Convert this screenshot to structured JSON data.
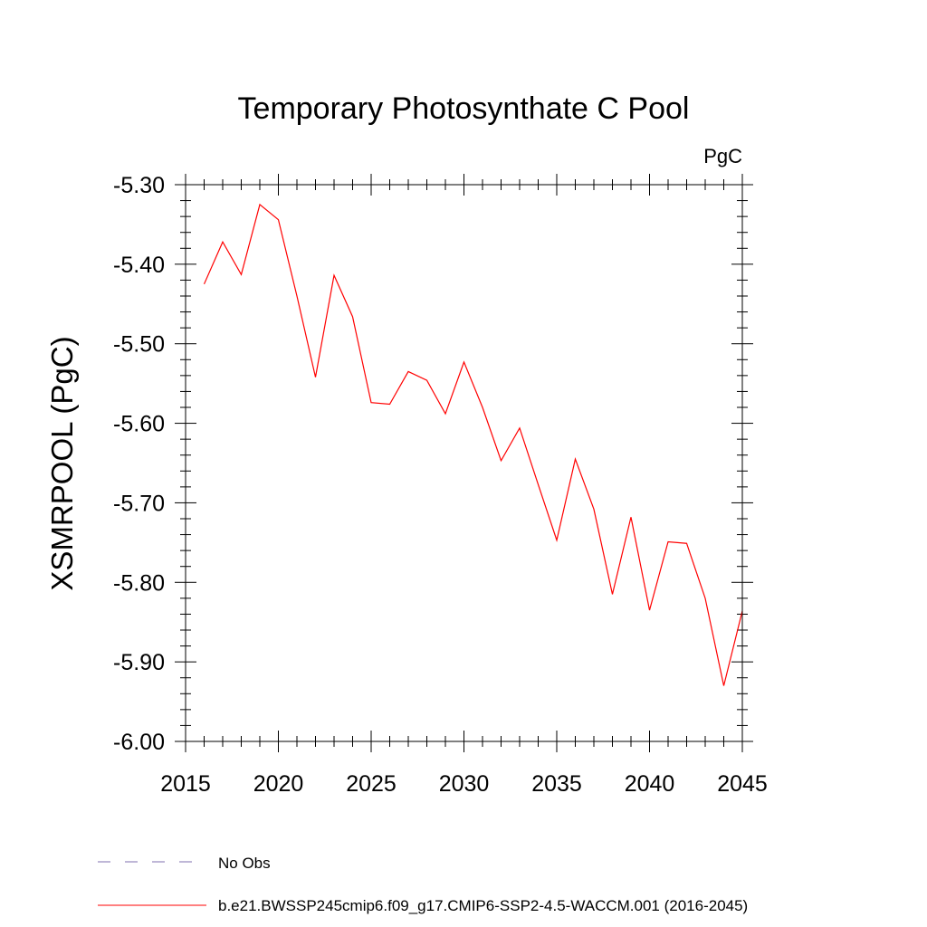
{
  "chart_data": {
    "type": "line",
    "title": "Temporary Photosynthate C Pool",
    "units_label": "PgC",
    "xlabel": "",
    "ylabel": "XSMRPOOL  (PgC)",
    "xlim": [
      2015,
      2045
    ],
    "ylim": [
      -6.0,
      -5.3
    ],
    "x_ticks": [
      2015,
      2020,
      2025,
      2030,
      2035,
      2040,
      2045
    ],
    "x_tick_labels": [
      "2015",
      "2020",
      "2025",
      "2030",
      "2035",
      "2040",
      "2045"
    ],
    "y_ticks": [
      -6.0,
      -5.9,
      -5.8,
      -5.7,
      -5.6,
      -5.5,
      -5.4,
      -5.3
    ],
    "y_tick_labels": [
      "-6.00",
      "-5.90",
      "-5.80",
      "-5.70",
      "-5.60",
      "-5.50",
      "-5.40",
      "-5.30"
    ],
    "grid": false,
    "legend_position": "bottom-left",
    "series": [
      {
        "name": "b.e21.BWSSP245cmip6.f09_g17.CMIP6-SSP2-4.5-WACCM.001 (2016-2045)",
        "color": "#ff0000",
        "style": "solid",
        "x": [
          2016,
          2017,
          2018,
          2019,
          2020,
          2021,
          2022,
          2023,
          2024,
          2025,
          2026,
          2027,
          2028,
          2029,
          2030,
          2031,
          2032,
          2033,
          2034,
          2035,
          2036,
          2037,
          2038,
          2039,
          2040,
          2041,
          2042,
          2043,
          2044,
          2045
        ],
        "values": [
          -5.425,
          -5.372,
          -5.413,
          -5.325,
          -5.344,
          -5.44,
          -5.542,
          -5.414,
          -5.466,
          -5.574,
          -5.576,
          -5.535,
          -5.546,
          -5.588,
          -5.523,
          -5.58,
          -5.647,
          -5.606,
          -5.677,
          -5.747,
          -5.645,
          -5.708,
          -5.815,
          -5.718,
          -5.835,
          -5.749,
          -5.751,
          -5.82,
          -5.93,
          -5.836
        ]
      }
    ],
    "legend": [
      {
        "label": "No Obs",
        "color": "#7f6faf",
        "style": "dashed"
      },
      {
        "label": "b.e21.BWSSP245cmip6.f09_g17.CMIP6-SSP2-4.5-WACCM.001 (2016-2045)",
        "color": "#ff0000",
        "style": "solid"
      }
    ]
  }
}
